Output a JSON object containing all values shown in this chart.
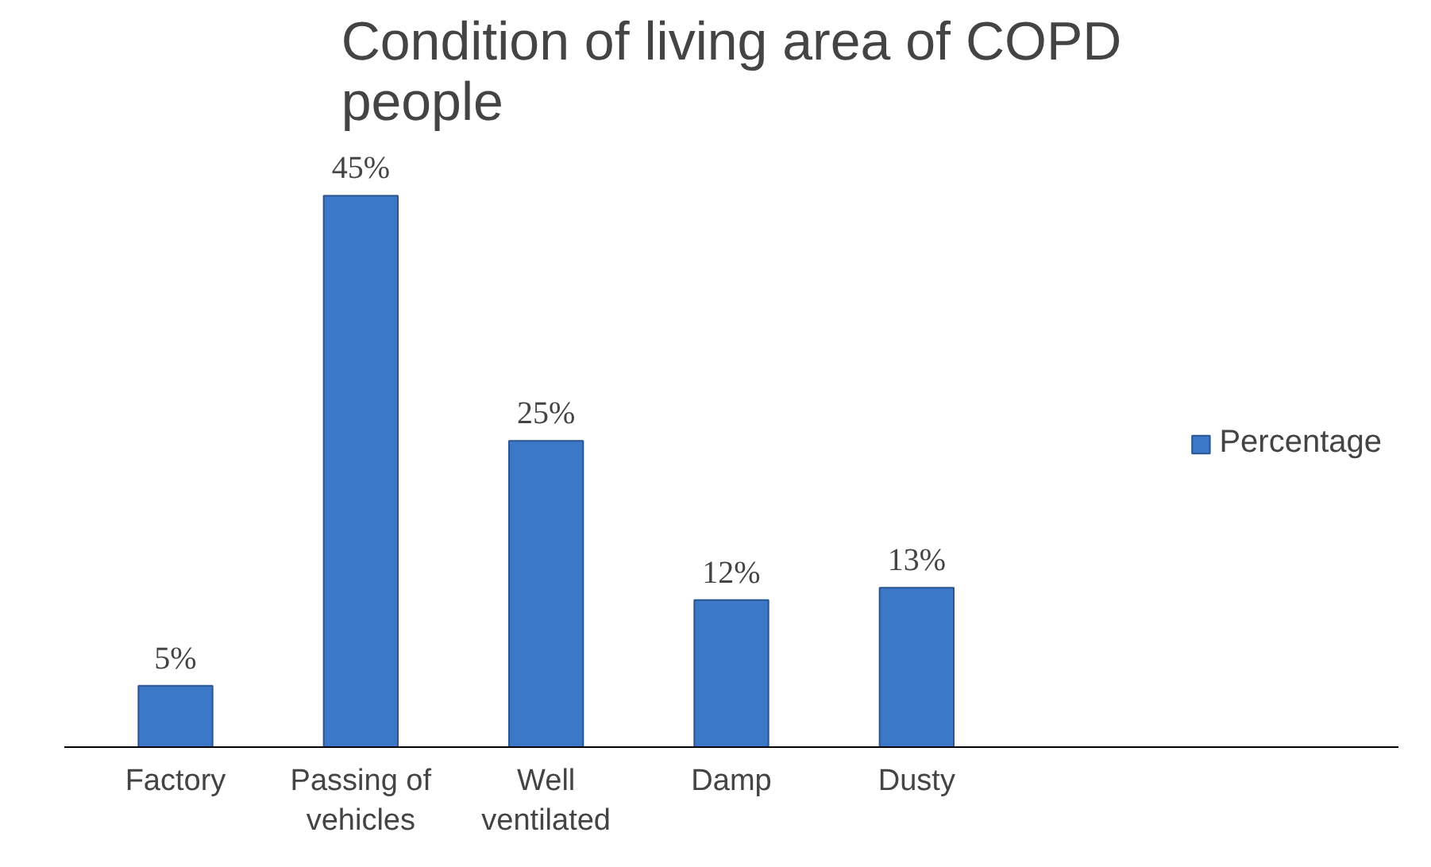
{
  "chart_data": {
    "type": "bar",
    "title": "Condition of living area of COPD people",
    "categories": [
      "Factory",
      "Passing of vehicles",
      "Well ventilated",
      "Damp",
      "Dusty"
    ],
    "series": [
      {
        "name": "Percentage",
        "color": "#3c78c8",
        "values": [
          5,
          45,
          25,
          12,
          13
        ],
        "value_labels": [
          "5%",
          "45%",
          "25%",
          "12%",
          "13%"
        ]
      }
    ],
    "tick_labels": "x",
    "grid": false,
    "legend": "right"
  }
}
